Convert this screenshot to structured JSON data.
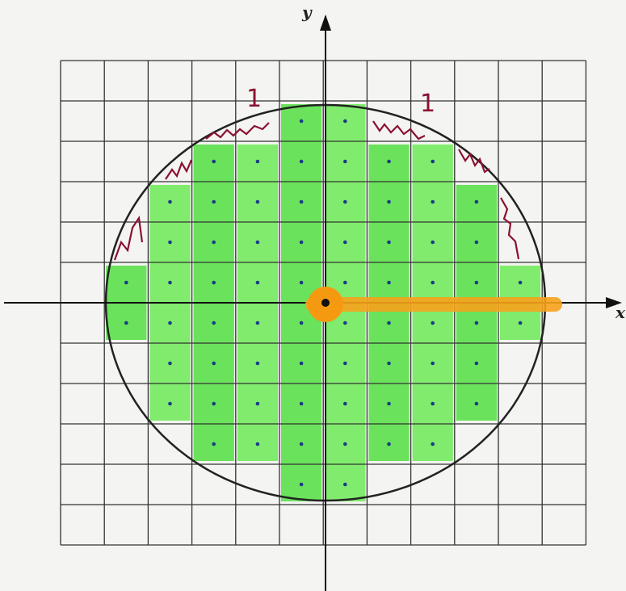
{
  "axes": {
    "x_label": "x",
    "y_label": "y"
  },
  "annotations": [
    "1",
    "1"
  ]
}
